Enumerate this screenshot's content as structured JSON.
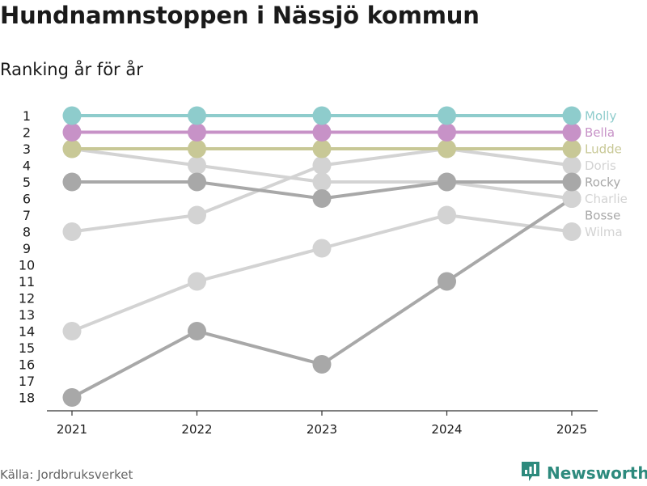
{
  "title": "Hundnamnstoppen i Nässjö kommun",
  "subtitle": "Ranking år för år",
  "source": "Källa: Jordbruksverket",
  "brand": {
    "name": "Newsworthy",
    "icon": "bar-chart-logo-icon",
    "color": "#2d8a7d"
  },
  "chart_data": {
    "type": "line",
    "title": "Hundnamnstoppen i Nässjö kommun",
    "subtitle": "Ranking år för år",
    "x": [
      "2021",
      "2022",
      "2023",
      "2024",
      "2025"
    ],
    "y_ticks": [
      "1",
      "2",
      "3",
      "4",
      "5",
      "6",
      "7",
      "8",
      "9",
      "10",
      "11",
      "12",
      "13",
      "14",
      "15",
      "16",
      "17",
      "18"
    ],
    "ylim": [
      1,
      18
    ],
    "y_reversed": true,
    "grid": false,
    "legend": "end-labels",
    "series": [
      {
        "name": "Wilma",
        "values": [
          14,
          11,
          9,
          7,
          8
        ],
        "color": "#d3d3d3"
      },
      {
        "name": "Bosse",
        "values": [
          18,
          14,
          16,
          11,
          6
        ],
        "color": "#a8a8a8"
      },
      {
        "name": "Charlie",
        "values": [
          3,
          4,
          5,
          5,
          6
        ],
        "color": "#d3d3d3"
      },
      {
        "name": "Doris",
        "values": [
          8,
          7,
          4,
          3,
          4
        ],
        "color": "#d3d3d3"
      },
      {
        "name": "Rocky",
        "values": [
          5,
          5,
          6,
          5,
          5
        ],
        "color": "#a8a8a8"
      },
      {
        "name": "Ludde",
        "values": [
          3,
          3,
          3,
          3,
          3
        ],
        "color": "#c8c896"
      },
      {
        "name": "Bella",
        "values": [
          2,
          2,
          2,
          2,
          2
        ],
        "color": "#c792c7"
      },
      {
        "name": "Molly",
        "values": [
          1,
          1,
          1,
          1,
          1
        ],
        "color": "#8ecccc"
      }
    ]
  }
}
